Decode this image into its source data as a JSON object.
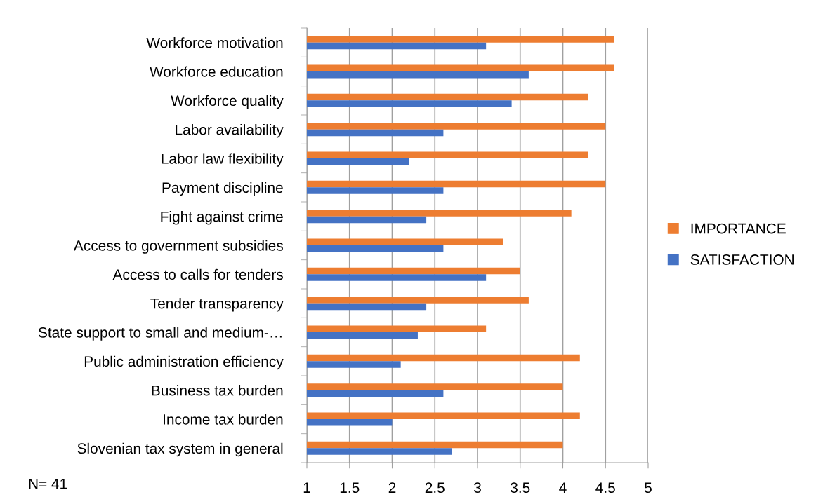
{
  "chart_data": {
    "type": "bar",
    "orientation": "horizontal",
    "categories": [
      "Workforce motivation",
      "Workforce education",
      "Workforce quality",
      "Labor availability",
      "Labor law flexibility",
      "Payment discipline",
      "Fight against crime",
      "Access to government subsidies",
      "Access to calls for tenders",
      "Tender transparency",
      "State support to small and medium-…",
      "Public administration efficiency",
      "Business tax burden",
      "Income tax burden",
      "Slovenian tax system in general"
    ],
    "series": [
      {
        "name": "IMPORTANCE",
        "color": "#ed7d31",
        "values": [
          4.6,
          4.6,
          4.3,
          4.5,
          4.3,
          4.5,
          4.1,
          3.3,
          3.5,
          3.6,
          3.1,
          4.2,
          4.0,
          4.2,
          4.0
        ]
      },
      {
        "name": "SATISFACTION",
        "color": "#4472c4",
        "values": [
          3.1,
          3.6,
          3.4,
          2.6,
          2.2,
          2.6,
          2.4,
          2.6,
          3.1,
          2.4,
          2.3,
          2.1,
          2.6,
          2.0,
          2.7
        ]
      }
    ],
    "xlim": [
      1,
      5
    ],
    "xticks": [
      1,
      1.5,
      2,
      2.5,
      3,
      3.5,
      4,
      4.5,
      5
    ],
    "grid": "x",
    "legend": "right",
    "annotations": [
      "N= 41"
    ]
  }
}
